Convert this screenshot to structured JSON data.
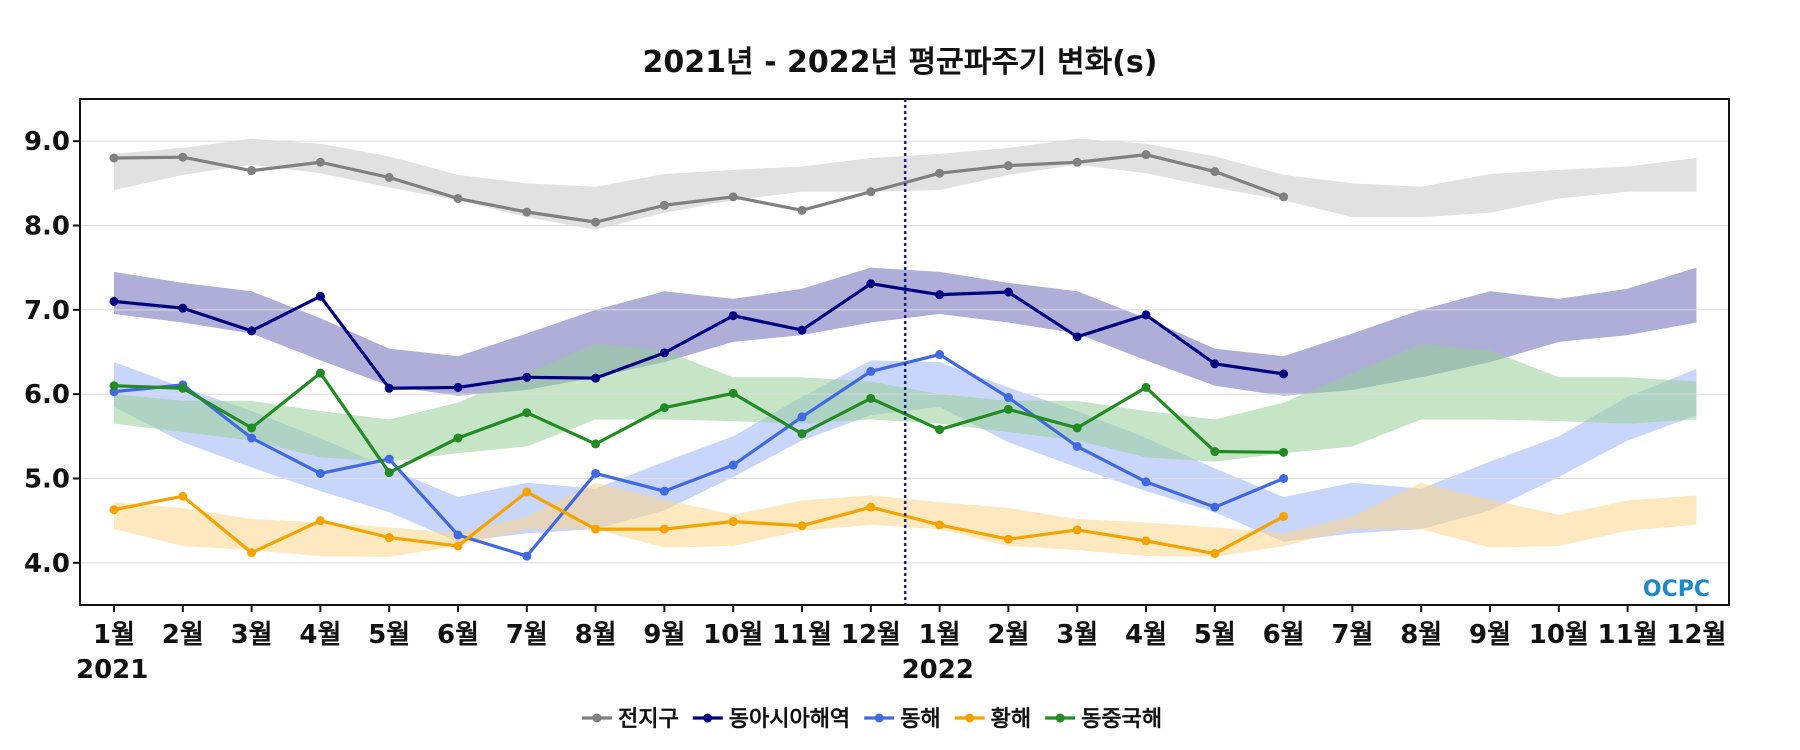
{
  "chart_data": {
    "type": "line",
    "title": "2021년 - 2022년 평균파주기 변화(s)",
    "ylim": [
      3.5,
      9.5
    ],
    "yticks": [
      "4.0",
      "5.0",
      "6.0",
      "7.0",
      "8.0",
      "9.0"
    ],
    "ytick_values": [
      4.0,
      5.0,
      6.0,
      7.0,
      8.0,
      9.0
    ],
    "x_labels": [
      "1월",
      "2월",
      "3월",
      "4월",
      "5월",
      "6월",
      "7월",
      "8월",
      "9월",
      "10월",
      "11월",
      "12월",
      "1월",
      "2월",
      "3월",
      "4월",
      "5월",
      "6월",
      "7월",
      "8월",
      "9월",
      "10월",
      "11월",
      "12월"
    ],
    "year_labels": [
      {
        "label": "2021",
        "index": 0
      },
      {
        "label": "2022",
        "index": 12
      }
    ],
    "divider_index": 11.5,
    "grid": true,
    "legend_position": "bottom-center",
    "logo_text": "OCPC",
    "series": [
      {
        "name": "전지구",
        "color": "#808080",
        "band_color": "#c8c8c8",
        "values": [
          8.8,
          8.81,
          8.65,
          8.75,
          8.57,
          8.32,
          8.16,
          8.04,
          8.24,
          8.34,
          8.18,
          8.4,
          8.62,
          8.71,
          8.75,
          8.84,
          8.64,
          8.34
        ],
        "band_upper": [
          8.85,
          8.92,
          9.03,
          8.97,
          8.82,
          8.6,
          8.5,
          8.46,
          8.61,
          8.66,
          8.7,
          8.8,
          8.85,
          8.92,
          9.03,
          8.97,
          8.82,
          8.6,
          8.5,
          8.46,
          8.61,
          8.66,
          8.7,
          8.8
        ],
        "band_lower": [
          8.42,
          8.6,
          8.72,
          8.62,
          8.45,
          8.3,
          8.1,
          7.95,
          8.15,
          8.3,
          8.4,
          8.4,
          8.42,
          8.6,
          8.72,
          8.62,
          8.45,
          8.3,
          8.1,
          8.1,
          8.15,
          8.32,
          8.4,
          8.4
        ]
      },
      {
        "name": "동아시아해역",
        "color": "#000080",
        "band_color": "#6b6bb8",
        "values": [
          7.1,
          7.02,
          6.75,
          7.16,
          6.07,
          6.08,
          6.2,
          6.19,
          6.49,
          6.93,
          6.76,
          7.31,
          7.18,
          7.21,
          6.68,
          6.94,
          6.36,
          6.24
        ],
        "band_upper": [
          7.45,
          7.32,
          7.22,
          6.9,
          6.54,
          6.45,
          6.72,
          7.0,
          7.22,
          7.13,
          7.25,
          7.5,
          7.45,
          7.32,
          7.22,
          6.9,
          6.54,
          6.45,
          6.72,
          7.0,
          7.22,
          7.13,
          7.25,
          7.5
        ],
        "band_lower": [
          6.95,
          6.85,
          6.72,
          6.4,
          6.1,
          5.98,
          6.05,
          6.2,
          6.38,
          6.62,
          6.7,
          6.85,
          6.95,
          6.85,
          6.72,
          6.4,
          6.1,
          5.98,
          6.05,
          6.2,
          6.38,
          6.62,
          6.7,
          6.85
        ]
      },
      {
        "name": "동해",
        "color": "#4169e1",
        "band_color": "#9db4f7",
        "values": [
          6.03,
          6.11,
          5.48,
          5.06,
          5.23,
          4.33,
          4.08,
          5.06,
          4.85,
          5.16,
          5.73,
          6.27,
          6.47,
          5.96,
          5.38,
          4.96,
          4.66,
          5.0
        ],
        "band_upper": [
          6.38,
          6.08,
          5.8,
          5.48,
          5.12,
          4.78,
          4.95,
          4.88,
          5.2,
          5.5,
          5.97,
          6.4,
          6.38,
          6.08,
          5.8,
          5.48,
          5.12,
          4.78,
          4.95,
          4.88,
          5.2,
          5.5,
          5.97,
          6.3
        ],
        "band_lower": [
          5.85,
          5.43,
          5.13,
          4.85,
          4.6,
          4.25,
          4.35,
          4.4,
          4.62,
          5.02,
          5.45,
          5.75,
          5.85,
          5.43,
          5.13,
          4.85,
          4.6,
          4.25,
          4.35,
          4.4,
          4.62,
          5.02,
          5.45,
          5.75
        ]
      },
      {
        "name": "황해",
        "color": "#f5a300",
        "band_color": "#fcd58a",
        "values": [
          4.63,
          4.79,
          4.12,
          4.5,
          4.3,
          4.2,
          4.84,
          4.4,
          4.4,
          4.49,
          4.44,
          4.66,
          4.45,
          4.28,
          4.39,
          4.26,
          4.11,
          4.55
        ],
        "band_upper": [
          4.72,
          4.65,
          4.52,
          4.48,
          4.42,
          4.35,
          4.55,
          4.95,
          4.75,
          4.57,
          4.74,
          4.8,
          4.72,
          4.65,
          4.52,
          4.48,
          4.42,
          4.35,
          4.55,
          4.95,
          4.75,
          4.57,
          4.74,
          4.8
        ],
        "band_lower": [
          4.4,
          4.2,
          4.15,
          4.08,
          4.07,
          4.2,
          4.4,
          4.4,
          4.18,
          4.2,
          4.38,
          4.45,
          4.4,
          4.2,
          4.15,
          4.08,
          4.07,
          4.2,
          4.4,
          4.4,
          4.18,
          4.2,
          4.38,
          4.45
        ]
      },
      {
        "name": "동중국해",
        "color": "#228b22",
        "band_color": "#98d098",
        "values": [
          6.1,
          6.07,
          5.6,
          6.25,
          5.07,
          5.48,
          5.78,
          5.41,
          5.84,
          6.01,
          5.53,
          5.95,
          5.58,
          5.82,
          5.6,
          6.08,
          5.32,
          5.31
        ],
        "band_upper": [
          6.0,
          5.92,
          5.92,
          5.8,
          5.7,
          5.9,
          6.25,
          6.6,
          6.52,
          6.2,
          6.2,
          6.15,
          6.0,
          5.92,
          5.92,
          5.8,
          5.7,
          5.9,
          6.25,
          6.6,
          6.52,
          6.2,
          6.2,
          6.15
        ],
        "band_lower": [
          5.65,
          5.55,
          5.45,
          5.25,
          5.2,
          5.3,
          5.38,
          5.7,
          5.7,
          5.68,
          5.65,
          5.7,
          5.65,
          5.55,
          5.45,
          5.25,
          5.2,
          5.3,
          5.38,
          5.7,
          5.7,
          5.68,
          5.65,
          5.7
        ]
      }
    ]
  }
}
